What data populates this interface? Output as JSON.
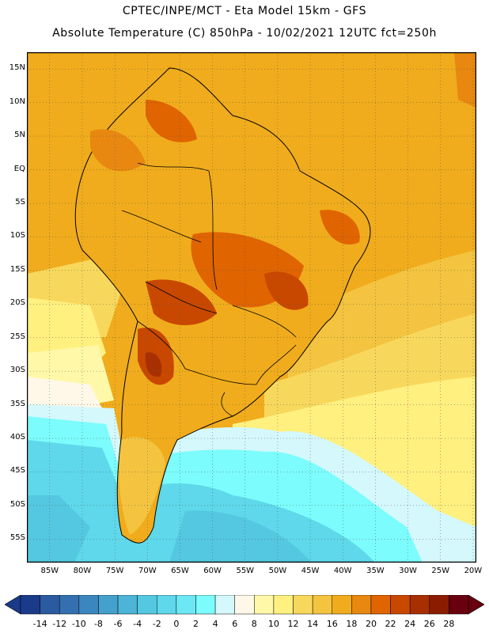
{
  "header": {
    "line1": "CPTEC/INPE/MCT -  Eta Model 15km - GFS",
    "line2": "Absolute Temperature (C) 850hPa - 10/02/2021 12UTC fct=250h"
  },
  "map": {
    "lat_labels": [
      "15N",
      "10N",
      "5N",
      "EQ",
      "5S",
      "10S",
      "15S",
      "20S",
      "25S",
      "30S",
      "35S",
      "40S",
      "45S",
      "50S",
      "55S"
    ],
    "lat_values": [
      15,
      10,
      5,
      0,
      -5,
      -10,
      -15,
      -20,
      -25,
      -30,
      -35,
      -40,
      -45,
      -50,
      -55
    ],
    "lon_labels": [
      "85W",
      "80W",
      "75W",
      "70W",
      "65W",
      "60W",
      "55W",
      "50W",
      "45W",
      "40W",
      "35W",
      "30W",
      "25W",
      "20W"
    ],
    "lon_values": [
      -85,
      -80,
      -75,
      -70,
      -65,
      -60,
      -55,
      -50,
      -45,
      -40,
      -35,
      -30,
      -25,
      -20
    ]
  },
  "colorbar": {
    "labels": [
      "-14",
      "-12",
      "-10",
      "-8",
      "-6",
      "-4",
      "-2",
      "0",
      "2",
      "4",
      "6",
      "8",
      "10",
      "12",
      "14",
      "16",
      "18",
      "20",
      "22",
      "24",
      "26",
      "28"
    ],
    "colors": [
      "#1a3a8a",
      "#2a5aa0",
      "#3470b0",
      "#3c86c0",
      "#44a0cc",
      "#4cb4d6",
      "#54c8e0",
      "#5ed8ea",
      "#6ce8f4",
      "#7cfcfc",
      "#d4f8fc",
      "#fff8e8",
      "#fff8a8",
      "#fff080",
      "#f8d85c",
      "#f4c440",
      "#f0ac1c",
      "#e88810",
      "#e06400",
      "#c84800",
      "#a83000",
      "#8c1c00",
      "#680010"
    ]
  }
}
